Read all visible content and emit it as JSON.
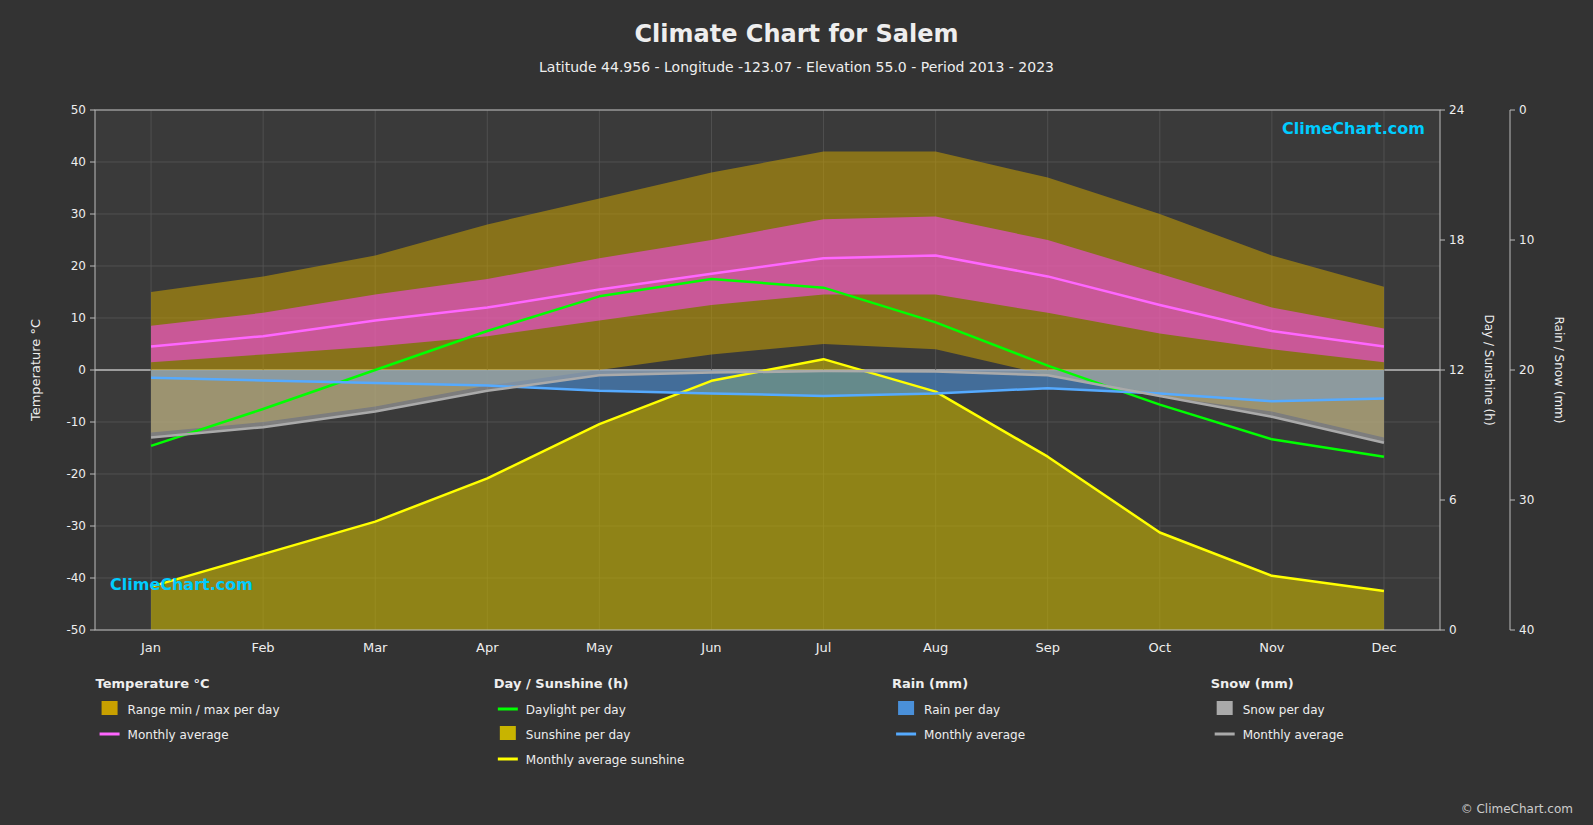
{
  "chart_data": {
    "type": "line",
    "title": "Climate Chart for Salem",
    "subtitle": "Latitude 44.956 - Longitude -123.07 - Elevation 55.0 - Period 2013 - 2023",
    "ylabel": "Temperature °C",
    "y2label": "Day / Sunshine (h)",
    "y3label": "Rain / Snow (mm)",
    "categories": [
      "Jan",
      "Feb",
      "Mar",
      "Apr",
      "May",
      "Jun",
      "Jul",
      "Aug",
      "Sep",
      "Oct",
      "Nov",
      "Dec"
    ],
    "ylim": [
      -50,
      50
    ],
    "yticks": [
      -50,
      -40,
      -30,
      -20,
      -10,
      0,
      10,
      20,
      30,
      40,
      50
    ],
    "y2lim": [
      0,
      24
    ],
    "y2ticks": [
      0,
      6,
      12,
      18,
      24
    ],
    "y3lim": [
      40,
      0
    ],
    "y3ticks": [
      0,
      10,
      20,
      30,
      40
    ],
    "grid": true,
    "series": [
      {
        "name": "Range min / max per day",
        "group": "Temperature °C",
        "type": "range",
        "color": "#c8a000",
        "low": [
          -12.0,
          -10.0,
          -7.0,
          -3.0,
          0.0,
          3.0,
          5.0,
          4.0,
          -1.0,
          -5.0,
          -8.0,
          -13.0
        ],
        "values": [
          15.0,
          18.0,
          22.0,
          28.0,
          33.0,
          38.0,
          42.0,
          42.0,
          37.0,
          30.0,
          22.0,
          16.0
        ]
      },
      {
        "type": "range",
        "color": "#ff44ff",
        "low": [
          1.5,
          3.0,
          4.5,
          6.5,
          9.5,
          12.5,
          14.5,
          14.5,
          11.0,
          7.0,
          4.0,
          1.5
        ],
        "values": [
          8.5,
          11.0,
          14.5,
          17.5,
          21.5,
          25.0,
          29.0,
          29.5,
          25.0,
          18.5,
          12.0,
          8.0
        ]
      },
      {
        "name": "Monthly average",
        "group": "Temperature °C",
        "type": "line",
        "color": "#ff66ff",
        "values": [
          4.5,
          6.5,
          9.5,
          12.0,
          15.5,
          18.5,
          21.5,
          22.0,
          18.0,
          12.5,
          7.5,
          4.5
        ]
      },
      {
        "name": "Daylight per day",
        "group": "Day / Sunshine (h)",
        "type": "line",
        "axis": "y2",
        "color": "#00ff00",
        "values": [
          8.5,
          10.2,
          12.0,
          13.8,
          15.4,
          16.2,
          15.8,
          14.2,
          12.2,
          10.4,
          8.8,
          8.0
        ]
      },
      {
        "name": "Sunshine per day",
        "group": "Day / Sunshine (h)",
        "type": "area",
        "axis": "y2",
        "color": "#c8b400",
        "values": [
          2.0,
          3.5,
          5.0,
          7.0,
          9.5,
          11.5,
          12.5,
          11.0,
          8.0,
          4.5,
          2.5,
          1.8
        ]
      },
      {
        "name": "Monthly average sunshine",
        "group": "Day / Sunshine (h)",
        "type": "line",
        "axis": "y2",
        "color": "#ffff00",
        "values": [
          2.0,
          3.5,
          5.0,
          7.0,
          9.5,
          11.5,
          12.5,
          11.0,
          8.0,
          4.5,
          2.5,
          1.8
        ]
      },
      {
        "name": "Rain per day",
        "group": "Rain (mm)",
        "type": "area",
        "color": "#4a90d9",
        "values": [
          -1.5,
          -2.0,
          -2.5,
          -3.0,
          -4.0,
          -4.5,
          -5.0,
          -4.5,
          -3.5,
          -4.5,
          -6.0,
          -5.5
        ]
      },
      {
        "name": "Monthly average",
        "group": "Rain (mm)",
        "type": "line",
        "color": "#55aaff",
        "values": [
          -1.5,
          -2.0,
          -2.5,
          -3.0,
          -4.0,
          -4.5,
          -5.0,
          -4.5,
          -3.5,
          -4.5,
          -6.0,
          -5.5
        ]
      },
      {
        "name": "Snow per day",
        "group": "Snow (mm)",
        "type": "area",
        "color": "#aaaaaa",
        "values": [
          -13.0,
          -11.0,
          -8.0,
          -4.0,
          -1.0,
          -0.5,
          -0.2,
          -0.3,
          -1.0,
          -5.0,
          -9.0,
          -14.0
        ]
      },
      {
        "name": "Monthly average",
        "group": "Snow (mm)",
        "type": "line",
        "color": "#aaaaaa",
        "values": [
          -13.0,
          -11.0,
          -8.0,
          -4.0,
          -1.0,
          -0.5,
          -0.2,
          -0.3,
          -1.0,
          -5.0,
          -9.0,
          -14.0
        ]
      }
    ],
    "annotations": [
      {
        "text": "ClimeChart.com"
      },
      {
        "text": "ClimeChart.com"
      }
    ],
    "watermark": "© ClimeChart.com"
  }
}
